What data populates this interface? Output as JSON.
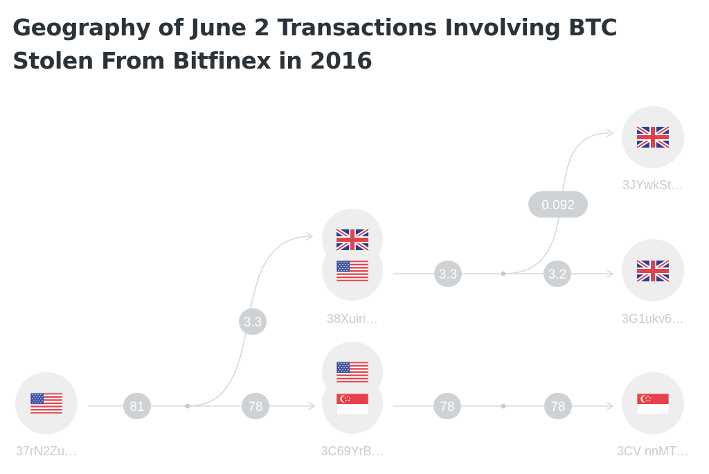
{
  "title": "Geography of June 2 Transactions Involving BTC Stolen From Bitfinex in 2016",
  "colors": {
    "edge": "#d5d8da",
    "pill": "#ced2d5",
    "node_background": "#eeeeef",
    "node_label": "#c7cbce",
    "title": "#2b3338"
  },
  "nodes": [
    {
      "id": "n1",
      "label": "37rN2Zu…",
      "flags": [
        "us-flag-icon"
      ]
    },
    {
      "id": "n2",
      "label": "38Xuiri…",
      "flags": [
        "uk-flag-icon",
        "us-flag-icon"
      ]
    },
    {
      "id": "n3",
      "label": "3C69YrB…",
      "flags": [
        "us-flag-icon",
        "singapore-flag-icon"
      ]
    },
    {
      "id": "n4",
      "label": "3JYwkSt…",
      "flags": [
        "uk-flag-icon"
      ]
    },
    {
      "id": "n5",
      "label": "3G1ukv6…",
      "flags": [
        "uk-flag-icon"
      ]
    },
    {
      "id": "n6",
      "label": "3CV nnMT…",
      "flags": [
        "singapore-flag-icon"
      ]
    }
  ],
  "edges": [
    {
      "id": "e1",
      "from": "n1",
      "to": "split-1",
      "amount": "81"
    },
    {
      "id": "e2",
      "from": "split-1",
      "to": "n2",
      "amount": "3.3"
    },
    {
      "id": "e3",
      "from": "split-1",
      "to": "n3",
      "amount": "78"
    },
    {
      "id": "e4",
      "from": "n2",
      "to": "split-2",
      "amount": "3.3"
    },
    {
      "id": "e5",
      "from": "split-2",
      "to": "n4",
      "amount": "0.092"
    },
    {
      "id": "e6",
      "from": "split-2",
      "to": "n5",
      "amount": "3.2"
    },
    {
      "id": "e7",
      "from": "n3",
      "to": "split-3",
      "amount": "78"
    },
    {
      "id": "e8",
      "from": "split-3",
      "to": "n6",
      "amount": "78"
    }
  ]
}
